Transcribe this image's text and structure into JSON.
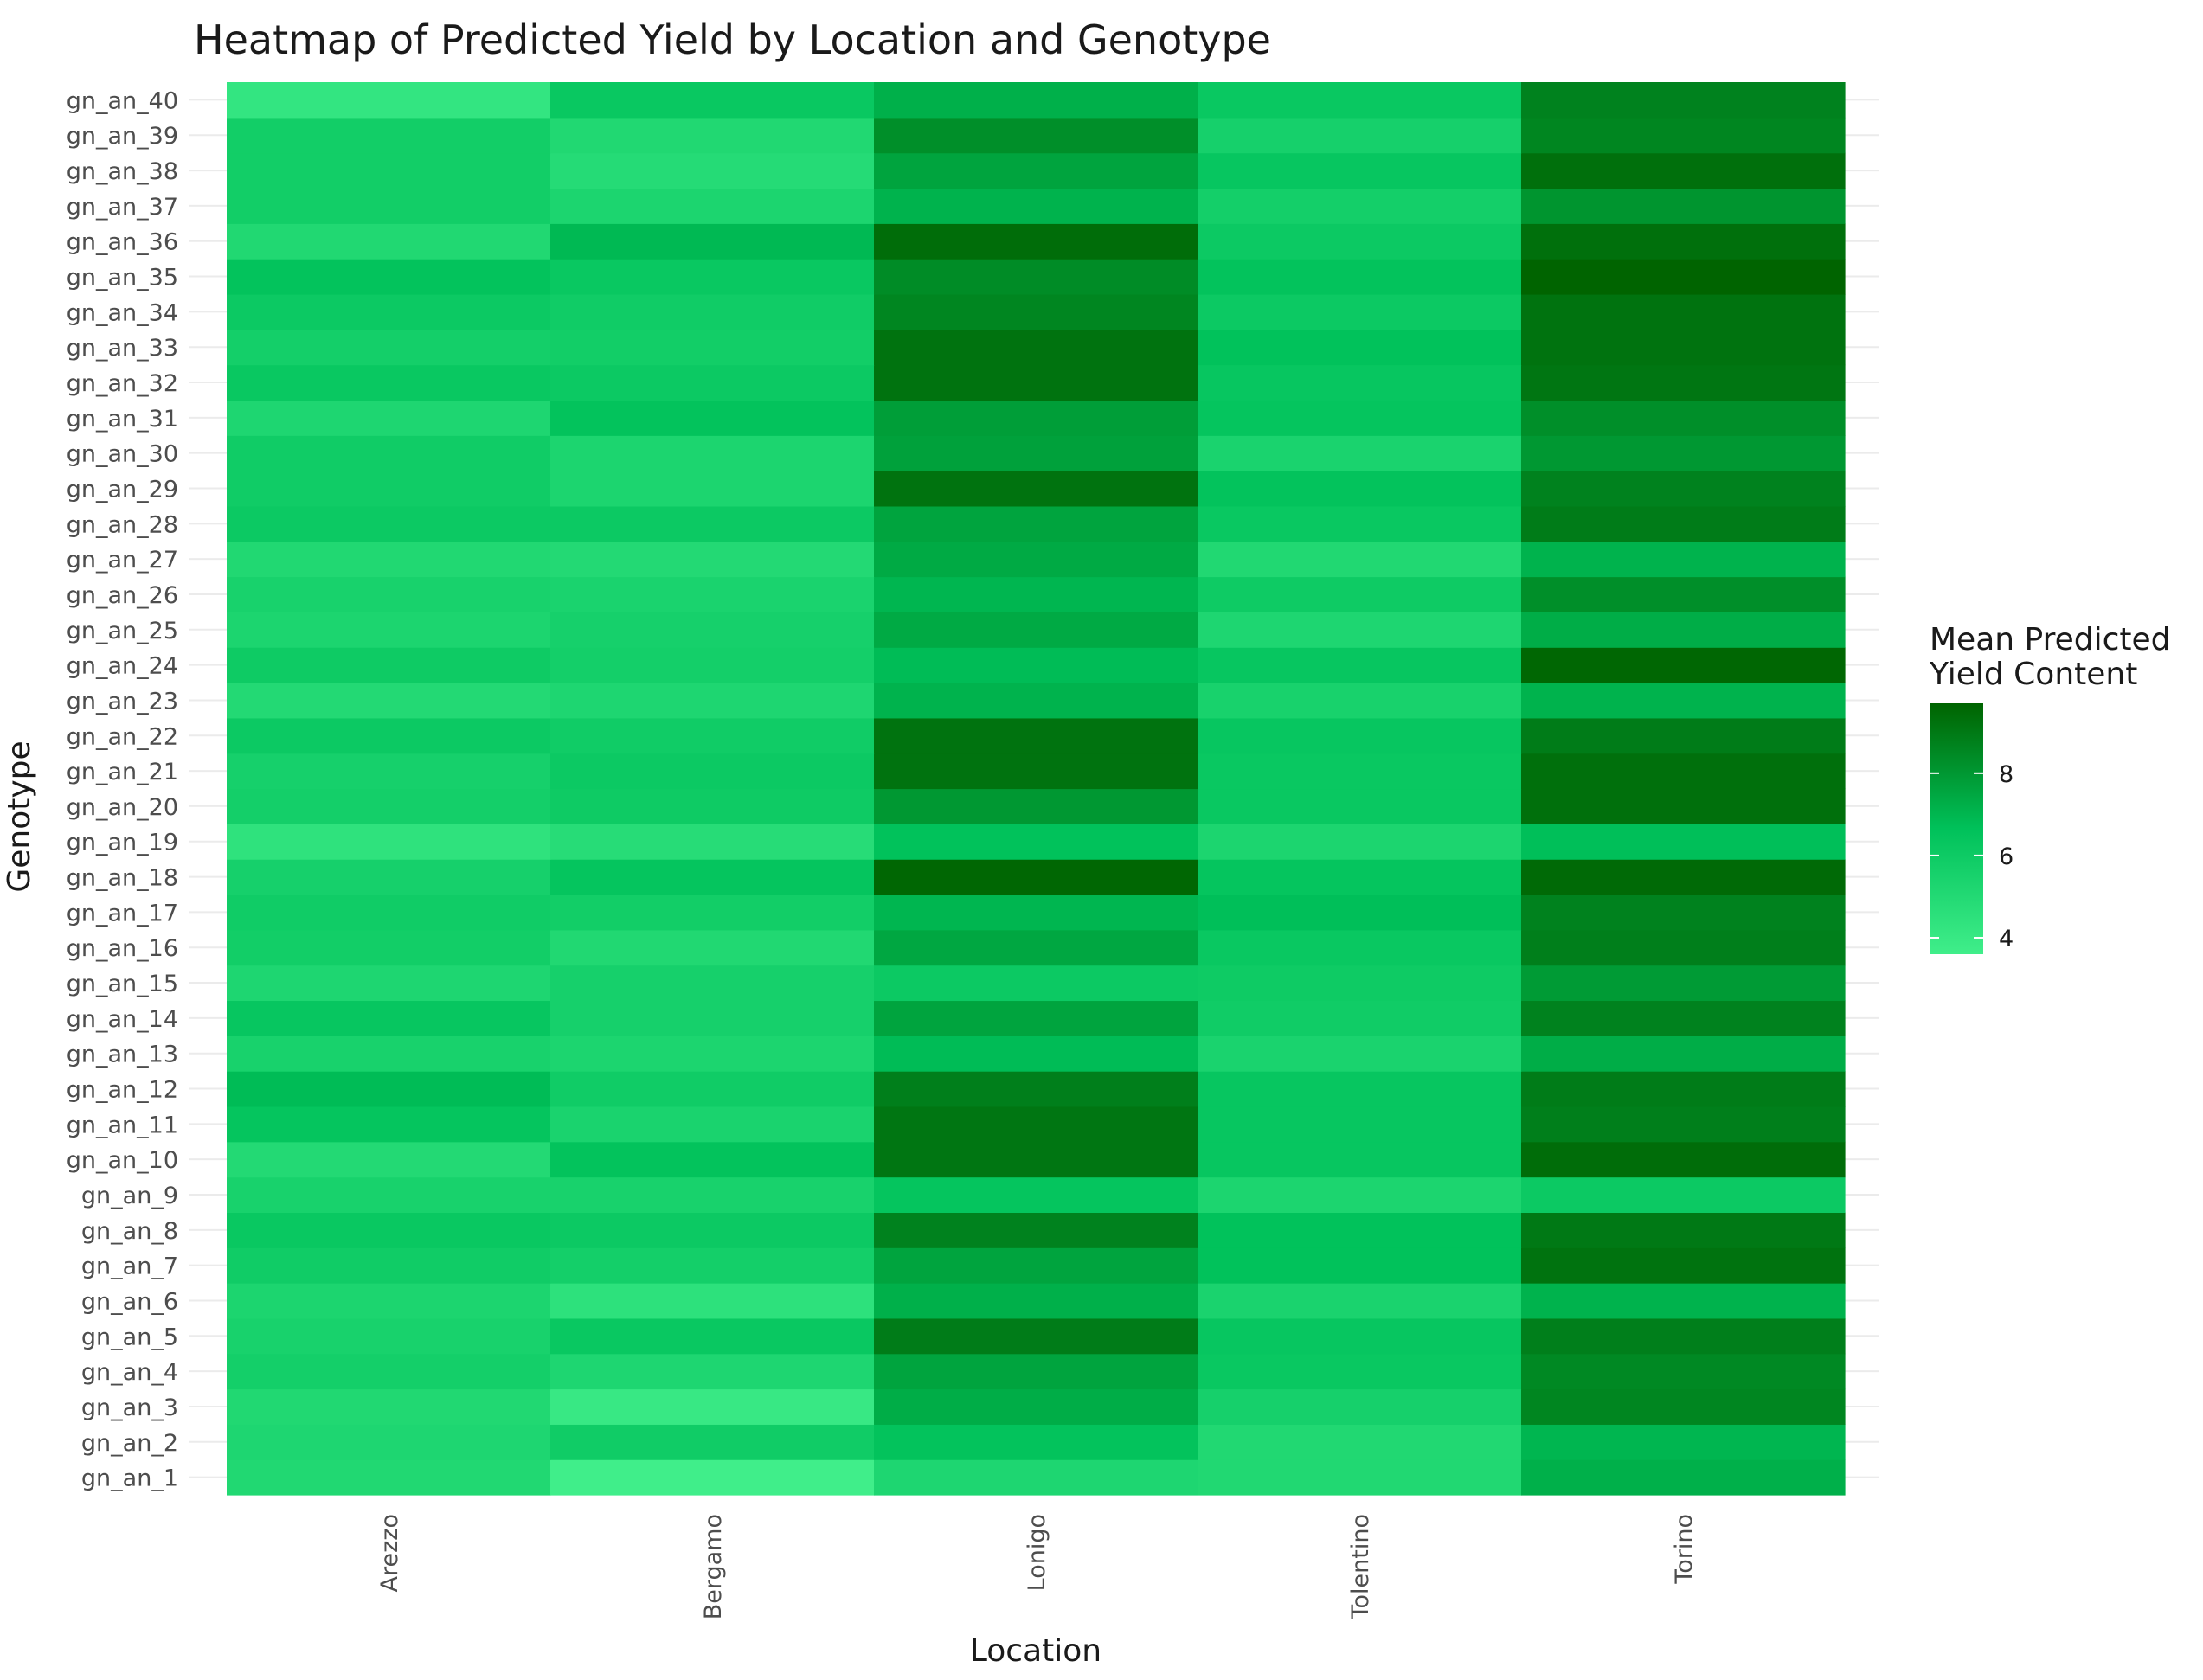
{
  "chart_data": {
    "type": "heatmap",
    "title": "Heatmap of Predicted Yield by Location and Genotype",
    "xlabel": "Location",
    "ylabel": "Genotype",
    "x_categories": [
      "Arezzo",
      "Bergamo",
      "Lonigo",
      "Tolentino",
      "Torino"
    ],
    "y_categories": [
      "gn_an_1",
      "gn_an_2",
      "gn_an_3",
      "gn_an_4",
      "gn_an_5",
      "gn_an_6",
      "gn_an_7",
      "gn_an_8",
      "gn_an_9",
      "gn_an_10",
      "gn_an_11",
      "gn_an_12",
      "gn_an_13",
      "gn_an_14",
      "gn_an_15",
      "gn_an_16",
      "gn_an_17",
      "gn_an_18",
      "gn_an_19",
      "gn_an_20",
      "gn_an_21",
      "gn_an_22",
      "gn_an_23",
      "gn_an_24",
      "gn_an_25",
      "gn_an_26",
      "gn_an_27",
      "gn_an_28",
      "gn_an_29",
      "gn_an_30",
      "gn_an_31",
      "gn_an_32",
      "gn_an_33",
      "gn_an_34",
      "gn_an_35",
      "gn_an_36",
      "gn_an_37",
      "gn_an_38",
      "gn_an_39",
      "gn_an_40"
    ],
    "values": [
      [
        5.1,
        3.6,
        5.2,
        5.1,
        7.2
      ],
      [
        5.2,
        5.9,
        6.5,
        5.1,
        7.0
      ],
      [
        5.1,
        4.0,
        7.3,
        5.6,
        8.6
      ],
      [
        5.7,
        5.2,
        7.6,
        6.2,
        8.5
      ],
      [
        5.5,
        6.2,
        8.9,
        6.3,
        8.8
      ],
      [
        5.3,
        4.5,
        7.2,
        5.4,
        7.1
      ],
      [
        5.9,
        5.7,
        7.6,
        6.6,
        9.2
      ],
      [
        6.2,
        6.1,
        8.7,
        6.6,
        9.0
      ],
      [
        5.5,
        5.5,
        6.4,
        5.3,
        6.1
      ],
      [
        5.0,
        6.5,
        9.1,
        6.3,
        9.4
      ],
      [
        6.4,
        5.4,
        9.1,
        6.3,
        8.8
      ],
      [
        6.8,
        5.9,
        8.8,
        6.3,
        8.9
      ],
      [
        5.5,
        5.3,
        6.8,
        5.4,
        7.3
      ],
      [
        6.3,
        5.6,
        7.6,
        5.9,
        8.7
      ],
      [
        5.2,
        5.6,
        6.1,
        6.0,
        7.9
      ],
      [
        5.8,
        5.1,
        7.5,
        6.2,
        8.8
      ],
      [
        5.9,
        5.8,
        7.0,
        6.7,
        8.7
      ],
      [
        5.6,
        6.4,
        9.6,
        6.4,
        9.5
      ],
      [
        4.4,
        4.8,
        6.6,
        5.3,
        6.7
      ],
      [
        5.7,
        6.0,
        8.0,
        6.2,
        9.3
      ],
      [
        5.6,
        6.1,
        9.2,
        6.2,
        9.3
      ],
      [
        6.1,
        5.9,
        9.2,
        6.3,
        8.9
      ],
      [
        5.0,
        5.2,
        7.1,
        5.5,
        7.1
      ],
      [
        6.0,
        5.7,
        6.8,
        6.3,
        9.6
      ],
      [
        5.3,
        5.6,
        7.4,
        5.2,
        7.3
      ],
      [
        5.5,
        5.4,
        7.0,
        6.0,
        8.3
      ],
      [
        5.1,
        5.0,
        7.4,
        5.1,
        7.1
      ],
      [
        6.1,
        6.1,
        7.6,
        6.2,
        8.9
      ],
      [
        5.9,
        5.3,
        9.2,
        6.5,
        8.7
      ],
      [
        5.9,
        5.3,
        7.7,
        5.4,
        8.0
      ],
      [
        5.2,
        6.5,
        7.8,
        6.4,
        8.3
      ],
      [
        6.2,
        6.1,
        9.2,
        6.3,
        9.1
      ],
      [
        5.7,
        5.8,
        9.2,
        6.6,
        9.2
      ],
      [
        6.1,
        5.9,
        8.6,
        6.1,
        9.2
      ],
      [
        6.5,
        6.2,
        8.4,
        6.5,
        9.7
      ],
      [
        5.1,
        6.9,
        9.4,
        6.1,
        9.3
      ],
      [
        5.8,
        5.3,
        7.1,
        5.7,
        8.1
      ],
      [
        5.8,
        4.9,
        7.6,
        6.3,
        9.3
      ],
      [
        5.8,
        5.1,
        8.3,
        5.6,
        8.6
      ],
      [
        4.2,
        6.2,
        7.2,
        6.2,
        8.7
      ]
    ],
    "color_scale": {
      "low": "#40ee8a",
      "mid": "#00c15a",
      "high": "#006400",
      "min": 3.6,
      "max": 9.7
    },
    "legend": {
      "title_line1": "Mean Predicted",
      "title_line2": "Yield Content",
      "ticks": [
        "4",
        "6",
        "8"
      ],
      "tick_values": [
        4,
        6,
        8
      ],
      "placement": "right"
    },
    "grid": true
  }
}
